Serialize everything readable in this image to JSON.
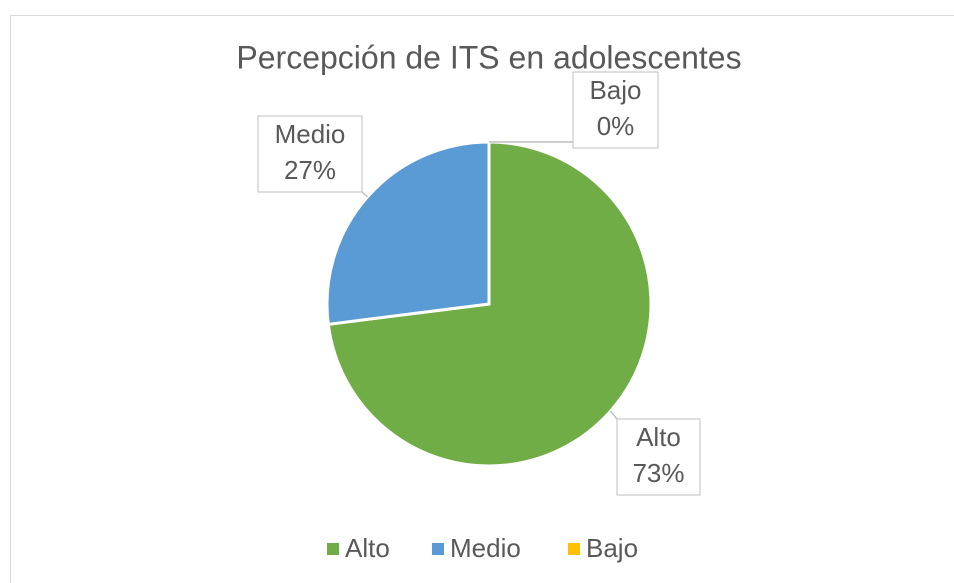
{
  "chart_data": {
    "type": "pie",
    "title": "Percepción de ITS en adolescentes",
    "categories": [
      "Alto",
      "Medio",
      "Bajo"
    ],
    "values": [
      73,
      27,
      0
    ],
    "value_labels": [
      "73%",
      "27%",
      "0%"
    ],
    "colors": [
      "#70ad47",
      "#5b9bd5",
      "#ffc000"
    ],
    "legend": "bottom"
  }
}
